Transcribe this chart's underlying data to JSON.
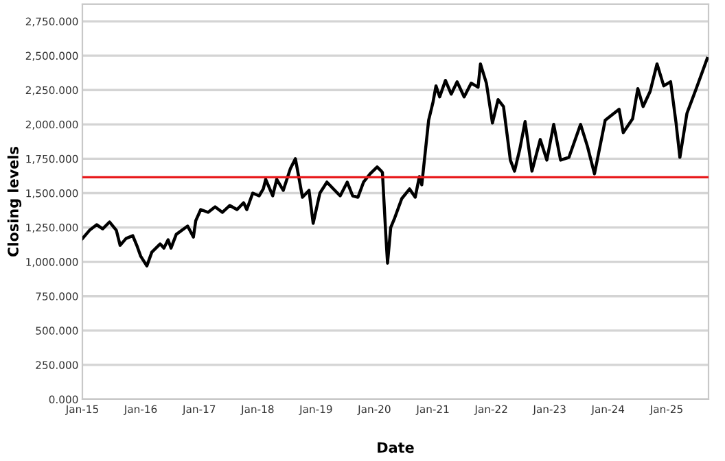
{
  "chart_data": {
    "type": "line",
    "xlabel": "Date",
    "ylabel": "Closing levels",
    "x": [
      "2015-01-02",
      "2015-02-15",
      "2015-04-01",
      "2015-05-08",
      "2015-06-20",
      "2015-08-01",
      "2015-08-25",
      "2015-10-01",
      "2015-11-12",
      "2015-12-07",
      "2016-01-01",
      "2016-02-08",
      "2016-03-10",
      "2016-05-01",
      "2016-05-25",
      "2016-06-20",
      "2016-07-08",
      "2016-08-10",
      "2016-10-20",
      "2016-11-25",
      "2016-12-10",
      "2017-01-10",
      "2017-02-25",
      "2017-04-10",
      "2017-05-25",
      "2017-07-10",
      "2017-08-25",
      "2017-10-05",
      "2017-10-25",
      "2017-12-01",
      "2018-01-10",
      "2018-02-05",
      "2018-02-20",
      "2018-04-05",
      "2018-04-30",
      "2018-06-10",
      "2018-07-25",
      "2018-08-25",
      "2018-10-08",
      "2018-11-18",
      "2018-12-14",
      "2019-01-25",
      "2019-03-10",
      "2019-04-20",
      "2019-06-01",
      "2019-07-15",
      "2019-08-18",
      "2019-09-20",
      "2019-10-25",
      "2019-12-05",
      "2020-01-18",
      "2020-02-13",
      "2020-02-20",
      "2020-03-12",
      "2020-03-23",
      "2020-04-12",
      "2020-05-07",
      "2020-06-20",
      "2020-08-08",
      "2020-09-12",
      "2020-10-08",
      "2020-10-23",
      "2020-12-05",
      "2021-01-01",
      "2021-01-20",
      "2021-02-12",
      "2021-03-20",
      "2021-04-25",
      "2021-06-01",
      "2021-07-15",
      "2021-08-28",
      "2021-10-10",
      "2021-10-25",
      "2021-12-01",
      "2022-01-08",
      "2022-02-12",
      "2022-03-18",
      "2022-04-30",
      "2022-05-26",
      "2022-06-28",
      "2022-07-31",
      "2022-09-12",
      "2022-11-03",
      "2022-12-14",
      "2023-01-26",
      "2023-03-10",
      "2023-05-01",
      "2023-07-13",
      "2023-08-25",
      "2023-10-08",
      "2023-12-14",
      "2024-03-10",
      "2024-04-05",
      "2024-06-02",
      "2024-07-05",
      "2024-08-07",
      "2024-09-20",
      "2024-11-02",
      "2024-12-14",
      "2025-01-26",
      "2025-03-01",
      "2025-03-25",
      "2025-05-08",
      "2025-07-05",
      "2025-09-12"
    ],
    "series": [
      {
        "color": "#000000",
        "values": [
          1170,
          1230,
          1270,
          1240,
          1290,
          1230,
          1120,
          1170,
          1190,
          1120,
          1040,
          970,
          1070,
          1130,
          1100,
          1160,
          1100,
          1200,
          1260,
          1180,
          1300,
          1380,
          1360,
          1400,
          1360,
          1410,
          1380,
          1430,
          1380,
          1500,
          1480,
          1530,
          1600,
          1480,
          1600,
          1520,
          1680,
          1750,
          1470,
          1520,
          1280,
          1500,
          1580,
          1530,
          1480,
          1580,
          1480,
          1470,
          1580,
          1640,
          1690,
          1660,
          1650,
          1200,
          990,
          1250,
          1320,
          1460,
          1530,
          1470,
          1620,
          1560,
          2030,
          2160,
          2280,
          2200,
          2320,
          2220,
          2310,
          2200,
          2300,
          2270,
          2440,
          2300,
          2010,
          2180,
          2130,
          1740,
          1660,
          1820,
          2020,
          1660,
          1890,
          1740,
          2000,
          1740,
          1760,
          2000,
          1840,
          1640,
          2030,
          2110,
          1940,
          2040,
          2260,
          2130,
          2240,
          2440,
          2280,
          2310,
          2010,
          1760,
          2080,
          2260,
          2480
        ]
      }
    ],
    "xlim": [
      "2015-01-01",
      "2025-09-20"
    ],
    "xticks": [
      {
        "value": "2015-01-01",
        "label": "Jan-15"
      },
      {
        "value": "2016-01-01",
        "label": "Jan-16"
      },
      {
        "value": "2017-01-01",
        "label": "Jan-17"
      },
      {
        "value": "2018-01-01",
        "label": "Jan-18"
      },
      {
        "value": "2019-01-01",
        "label": "Jan-19"
      },
      {
        "value": "2020-01-01",
        "label": "Jan-20"
      },
      {
        "value": "2021-01-01",
        "label": "Jan-21"
      },
      {
        "value": "2022-01-01",
        "label": "Jan-22"
      },
      {
        "value": "2023-01-01",
        "label": "Jan-23"
      },
      {
        "value": "2024-01-01",
        "label": "Jan-24"
      },
      {
        "value": "2025-01-01",
        "label": "Jan-25"
      }
    ],
    "ylim": [
      0,
      2875
    ],
    "yticks": [
      {
        "value": 0,
        "label": "0.000"
      },
      {
        "value": 250,
        "label": "250.000"
      },
      {
        "value": 500,
        "label": "500.000"
      },
      {
        "value": 750,
        "label": "750.000"
      },
      {
        "value": 1000,
        "label": "1,000.000"
      },
      {
        "value": 1250,
        "label": "1,250.000"
      },
      {
        "value": 1500,
        "label": "1,500.000"
      },
      {
        "value": 1750,
        "label": "1,750.000"
      },
      {
        "value": 2000,
        "label": "2,000.000"
      },
      {
        "value": 2250,
        "label": "2,250.000"
      },
      {
        "value": 2500,
        "label": "2,500.000"
      },
      {
        "value": 2750,
        "label": "2,750.000"
      }
    ],
    "ref_lines": [
      {
        "axis": "y",
        "value": 1615,
        "color": "#e8191b"
      }
    ],
    "grid": "y",
    "legend": false,
    "line_style": "solid"
  }
}
